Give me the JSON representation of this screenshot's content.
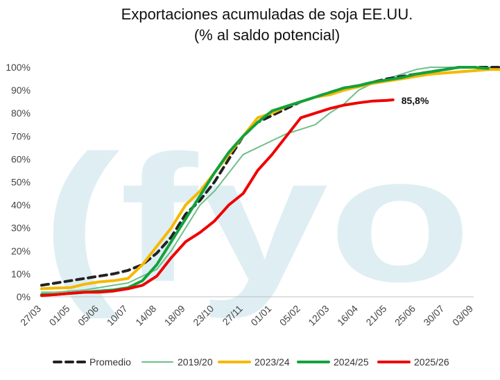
{
  "chart_data": {
    "type": "line",
    "title": "Exportaciones acumuladas de soja EE.UU.",
    "subtitle": "(% al saldo potencial)",
    "watermark": "(fyo",
    "x_tick_labels": [
      "27/03",
      "01/05",
      "05/06",
      "10/07",
      "14/08",
      "18/09",
      "23/10",
      "27/11",
      "01/01",
      "05/02",
      "12/03",
      "16/04",
      "21/05",
      "25/06",
      "30/07",
      "03/09"
    ],
    "y_tick_labels": [
      "0%",
      "10%",
      "20%",
      "30%",
      "40%",
      "50%",
      "60%",
      "70%",
      "80%",
      "90%",
      "100%"
    ],
    "ylim": [
      0,
      100
    ],
    "grid": false,
    "legend_position": "bottom",
    "annotation": {
      "text": "85,8%",
      "x": 12.2,
      "y": 85.8
    },
    "series": [
      {
        "name": "Promedio",
        "color": "#222222",
        "dash": true,
        "x": [
          0,
          0.5,
          1,
          1.5,
          2,
          2.5,
          3,
          3.5,
          4,
          4.5,
          5,
          5.5,
          6,
          6.5,
          7,
          7.5,
          8,
          8.5,
          9,
          9.5,
          10,
          10.5,
          11,
          11.5,
          12,
          12.5,
          13,
          13.5,
          14,
          14.5,
          15,
          15.5,
          16
        ],
        "y": [
          5,
          6,
          7,
          8,
          9,
          10,
          11.5,
          14,
          19,
          26,
          36,
          42,
          50,
          60,
          70,
          76,
          79,
          82,
          85,
          87,
          89,
          91,
          92,
          93.5,
          95,
          96,
          97,
          98,
          99,
          100,
          100,
          100,
          100
        ]
      },
      {
        "name": "2019/20",
        "color": "#6dbf8a",
        "dash": false,
        "x": [
          0,
          0.5,
          1,
          1.5,
          2,
          2.5,
          3,
          3.5,
          4,
          4.5,
          5,
          5.5,
          6,
          6.5,
          7,
          7.5,
          8,
          8.5,
          9,
          9.5,
          10,
          10.5,
          11,
          11.5,
          12,
          12.5,
          13,
          13.5,
          14,
          14.5,
          15,
          15.5,
          16
        ],
        "y": [
          2,
          2,
          2.5,
          3,
          4,
          5,
          6,
          9,
          12,
          20,
          30,
          40,
          46,
          54,
          62,
          65,
          68,
          71,
          73,
          75,
          80,
          84,
          90,
          93,
          95,
          97,
          99,
          100,
          100,
          100,
          100,
          100,
          100
        ]
      },
      {
        "name": "2023/24",
        "color": "#f5b800",
        "dash": false,
        "x": [
          0,
          0.5,
          1,
          1.5,
          2,
          2.5,
          3,
          3.5,
          4,
          4.5,
          5,
          5.5,
          6,
          6.5,
          7,
          7.5,
          8,
          8.5,
          9,
          9.5,
          10,
          10.5,
          11,
          11.5,
          12,
          12.5,
          13,
          13.5,
          14,
          14.5,
          15,
          15.5,
          16
        ],
        "y": [
          3.5,
          3.8,
          4,
          5.5,
          6.5,
          7,
          8,
          14,
          22,
          30,
          40,
          46,
          54,
          62,
          70,
          78,
          80,
          83,
          85,
          87,
          88,
          90,
          91.5,
          93,
          94,
          95,
          96,
          97,
          97.5,
          98,
          98.5,
          99,
          99
        ]
      },
      {
        "name": "2024/25",
        "color": "#12a23c",
        "dash": false,
        "x": [
          0,
          0.5,
          1,
          1.5,
          2,
          2.5,
          3,
          3.5,
          4,
          4.5,
          5,
          5.5,
          6,
          6.5,
          7,
          7.5,
          8,
          8.5,
          9,
          9.5,
          10,
          10.5,
          11,
          11.5,
          12,
          12.5,
          13,
          13.5,
          14,
          14.5,
          15,
          15.5
        ],
        "y": [
          1,
          1,
          1.5,
          2,
          2.5,
          3,
          4,
          7,
          14,
          24,
          34,
          44,
          54,
          63,
          70,
          76,
          81,
          83,
          85,
          87,
          89,
          91,
          92,
          93.5,
          94.5,
          95.5,
          97,
          98,
          99,
          100,
          100,
          99.5
        ]
      },
      {
        "name": "2025/26",
        "color": "#ee0000",
        "dash": false,
        "x": [
          0,
          0.5,
          1,
          1.5,
          2,
          2.5,
          3,
          3.5,
          4,
          4.5,
          5,
          5.5,
          6,
          6.5,
          7,
          7.5,
          8,
          8.5,
          9,
          9.5,
          10,
          10.5,
          11,
          11.5,
          12,
          12.2
        ],
        "y": [
          0.5,
          1,
          1.5,
          2,
          2,
          2.5,
          3.5,
          5,
          9,
          17,
          24,
          28,
          33,
          40,
          45,
          55,
          62,
          70,
          78,
          80,
          82,
          83.5,
          84.5,
          85.3,
          85.6,
          85.8
        ]
      }
    ]
  }
}
